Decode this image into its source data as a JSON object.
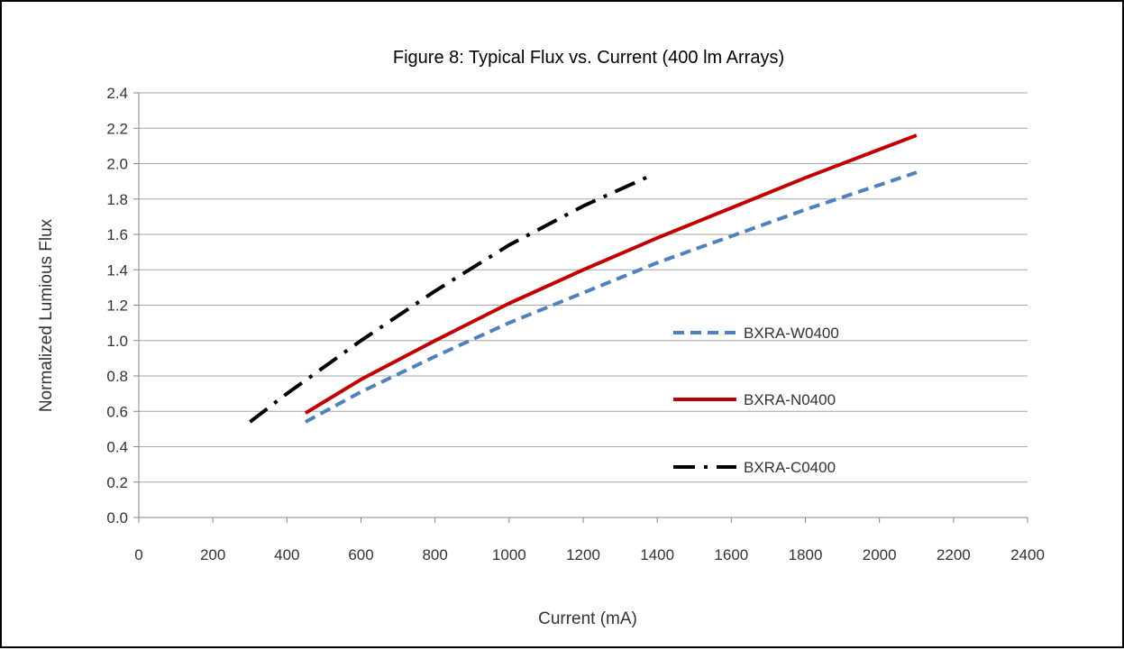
{
  "chart_data": {
    "type": "line",
    "title": "Figure 8:  Typical Flux vs. Current (400 lm Arrays)",
    "xlabel": "Current (mA)",
    "ylabel": "Normalized Lumious Flux",
    "xlim": [
      0,
      2400
    ],
    "ylim": [
      0,
      2.4
    ],
    "x_ticks": [
      "0",
      "200",
      "400",
      "600",
      "800",
      "1000",
      "1200",
      "1400",
      "1600",
      "1800",
      "2000",
      "2200",
      "2400"
    ],
    "y_ticks": [
      "0.0",
      "0.2",
      "0.4",
      "0.6",
      "0.8",
      "1.0",
      "1.2",
      "1.4",
      "1.6",
      "1.8",
      "2.0",
      "2.2",
      "2.4"
    ],
    "grid": "horizontal",
    "legend_position": "right-center",
    "series": [
      {
        "name": "BXRA-W0400",
        "color": "#4F81BD",
        "line_style": "dashed",
        "x": [
          450,
          600,
          800,
          1000,
          1200,
          1400,
          1600,
          1800,
          2000,
          2100
        ],
        "y": [
          0.54,
          0.71,
          0.91,
          1.1,
          1.27,
          1.44,
          1.59,
          1.74,
          1.88,
          1.95
        ]
      },
      {
        "name": "BXRA-N0400",
        "color": "#C00000",
        "line_style": "solid",
        "x": [
          450,
          600,
          800,
          1000,
          1200,
          1400,
          1600,
          1800,
          2000,
          2100
        ],
        "y": [
          0.59,
          0.78,
          1.0,
          1.21,
          1.4,
          1.58,
          1.75,
          1.92,
          2.08,
          2.16
        ]
      },
      {
        "name": "BXRA-C0400",
        "color": "#000000",
        "line_style": "dash-dot",
        "x": [
          300,
          400,
          600,
          800,
          1000,
          1200,
          1380
        ],
        "y": [
          0.54,
          0.7,
          1.0,
          1.28,
          1.54,
          1.76,
          1.93
        ]
      }
    ]
  }
}
